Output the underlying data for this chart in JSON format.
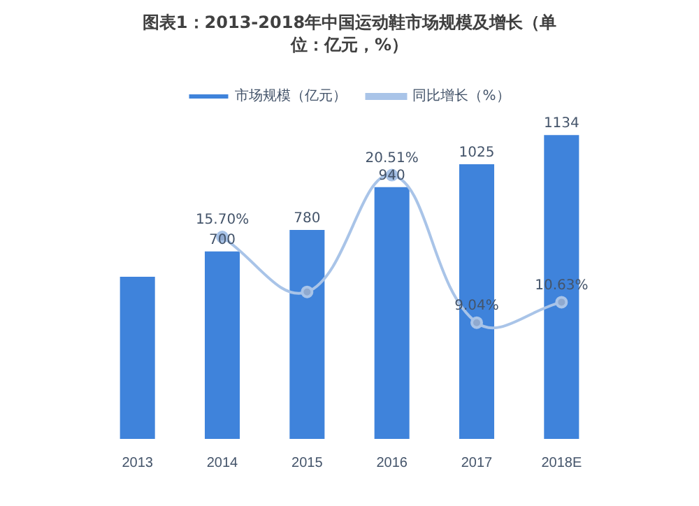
{
  "chart_data": {
    "type": "bar",
    "title": "图表1：2013-2018年中国运动鞋市场规模及增长（单位：亿元，%）",
    "categories": [
      "2013",
      "2014",
      "2015",
      "2016",
      "2017",
      "2018E"
    ],
    "series": [
      {
        "name": "市场规模（亿元）",
        "color": "#3f83db",
        "values": [
          605,
          700,
          780,
          940,
          1025,
          1134
        ],
        "value_labels": [
          null,
          "700",
          "780",
          "940",
          "1025",
          "1134"
        ]
      },
      {
        "name": "同比增长（%）",
        "type": "line",
        "axis": "y2",
        "color": "#a9c4e8",
        "values": [
          null,
          15.7,
          11.43,
          20.51,
          9.04,
          10.63
        ],
        "value_labels": [
          null,
          "15.70%",
          null,
          "20.51%",
          "9.04%",
          "10.63%"
        ]
      }
    ],
    "tick_labels": "x",
    "grid": false,
    "legend": "top",
    "marker": "circle"
  }
}
